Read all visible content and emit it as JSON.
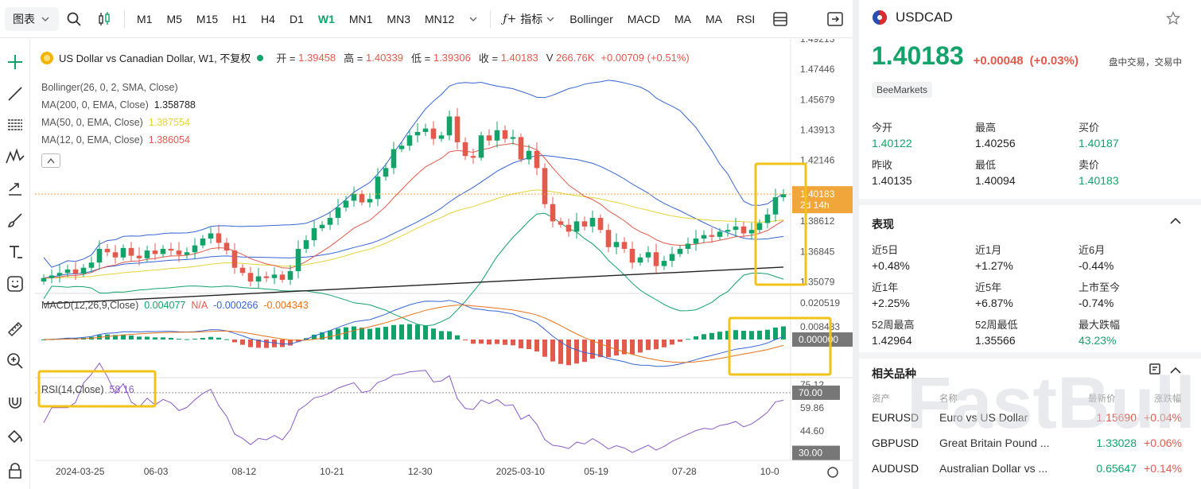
{
  "toolbar": {
    "chart_type": "图表",
    "intervals": [
      "M1",
      "M5",
      "M15",
      "H1",
      "H4",
      "D1",
      "W1",
      "MN1",
      "MN3",
      "MN12"
    ],
    "active_interval": "W1",
    "indicators_label": "指标",
    "indicator_buttons": [
      "Bollinger",
      "MACD",
      "MA",
      "MA",
      "RSI"
    ]
  },
  "pane": {
    "title": "US Dollar vs Canadian Dollar, W1, 不复权",
    "open_label": "开 =",
    "open": "1.39458",
    "high_label": "高 =",
    "high": "1.40339",
    "low_label": "低 =",
    "low": "1.39306",
    "close_label": "收 =",
    "close": "1.40183",
    "volume_label": "V",
    "volume": "266.76K",
    "change": "+0.00709 (+0.51%)",
    "indicators": [
      {
        "label": "Bollinger(26, 0, 2, SMA, Close)",
        "value": "",
        "color": "#3565d6"
      },
      {
        "label": "MA(200, 0, EMA, Close)",
        "value": "1.358788",
        "color": "#222222"
      },
      {
        "label": "MA(50, 0, EMA, Close)",
        "value": "1.387554",
        "color": "#e8d336"
      },
      {
        "label": "MA(12, 0, EMA, Close)",
        "value": "1.386054",
        "color": "#e25a4c"
      }
    ],
    "price_ticks": [
      "1.49213",
      "1.47446",
      "1.45679",
      "1.43913",
      "1.42146",
      "1.40183",
      "1.38612",
      "1.36845",
      "1.35079"
    ],
    "last_price_tag": "1.40183",
    "countdown_tag": "2d 14h",
    "macd_legend": {
      "label": "MACD(12,26,9,Close)",
      "v1": "0.004077",
      "v2": "N/A",
      "v3": "-0.000266",
      "v4": "-0.004343"
    },
    "macd_ticks": [
      "0.020519",
      "0.008433",
      "0.000000"
    ],
    "rsi_legend": {
      "label": "RSI(14,Close)",
      "value": "58.16"
    },
    "rsi_ticks": [
      "75.12",
      "70.00",
      "59.86",
      "44.60",
      "30.00"
    ],
    "date_ticks": [
      "2024-03-25",
      "06-03",
      "08-12",
      "10-21",
      "12-30",
      "2025-03-10",
      "05-19",
      "07-28",
      "10-0"
    ]
  },
  "chart_data": {
    "type": "candlestick",
    "symbol": "USDCAD",
    "interval": "W1",
    "price_axis": [
      1.345,
      1.4921
    ],
    "closes": [
      1.353,
      1.3545,
      1.356,
      1.358,
      1.3555,
      1.359,
      1.362,
      1.37,
      1.368,
      1.365,
      1.3705,
      1.366,
      1.3645,
      1.369,
      1.367,
      1.37,
      1.369,
      1.3665,
      1.368,
      1.372,
      1.376,
      1.379,
      1.3735,
      1.369,
      1.359,
      1.356,
      1.351,
      1.354,
      1.353,
      1.355,
      1.352,
      1.357,
      1.37,
      1.375,
      1.382,
      1.384,
      1.388,
      1.394,
      1.398,
      1.402,
      1.397,
      1.399,
      1.412,
      1.417,
      1.428,
      1.43,
      1.436,
      1.438,
      1.44,
      1.434,
      1.436,
      1.447,
      1.432,
      1.424,
      1.423,
      1.436,
      1.433,
      1.439,
      1.434,
      1.435,
      1.422,
      1.427,
      1.417,
      1.396,
      1.386,
      1.384,
      1.38,
      1.386,
      1.383,
      1.388,
      1.381,
      1.371,
      1.374,
      1.37,
      1.362,
      1.365,
      1.368,
      1.36,
      1.363,
      1.367,
      1.37,
      1.373,
      1.376,
      1.378,
      1.377,
      1.38,
      1.381,
      1.383,
      1.379,
      1.381,
      1.385,
      1.39,
      1.4,
      1.4018
    ],
    "rsi_levels": [
      70,
      30
    ],
    "macd_zero": 0
  },
  "info": {
    "symbol": "USDCAD",
    "last_price": "1.40183",
    "change_abs": "+0.00048",
    "change_pct": "(+0.03%)",
    "trading_status": "盘中交易，交易中",
    "source": "BeeMarkets",
    "stats": [
      {
        "label": "今开",
        "value": "1.40122",
        "up": true
      },
      {
        "label": "最高",
        "value": "1.40256",
        "up": false
      },
      {
        "label": "买价",
        "value": "1.40187",
        "up": true
      },
      {
        "label": "昨收",
        "value": "1.40135",
        "up": false
      },
      {
        "label": "最低",
        "value": "1.40094",
        "up": false
      },
      {
        "label": "卖价",
        "value": "1.40183",
        "up": true
      }
    ],
    "performance_title": "表现",
    "performance": [
      {
        "label": "近5日",
        "value": "+0.48%",
        "up": false
      },
      {
        "label": "近1月",
        "value": "+1.27%",
        "up": false
      },
      {
        "label": "近6月",
        "value": "-0.44%",
        "up": false
      },
      {
        "label": "近1年",
        "value": "+2.25%",
        "up": false
      },
      {
        "label": "近5年",
        "value": "+6.87%",
        "up": false
      },
      {
        "label": "上市至今",
        "value": "-0.74%",
        "up": false
      },
      {
        "label": "52周最高",
        "value": "1.42964",
        "up": false
      },
      {
        "label": "52周最低",
        "value": "1.35566",
        "up": false
      },
      {
        "label": "最大跌幅",
        "value": "43.23%",
        "up": true
      }
    ],
    "related_title": "相关品种",
    "related_headers": [
      "资产",
      "名称",
      "最新价",
      "涨跌幅"
    ],
    "related": [
      {
        "symbol": "EURUSD",
        "name": "Euro vs US Dollar",
        "price": "1.15690",
        "change": "+0.04%",
        "price_color": "#e25a4c"
      },
      {
        "symbol": "GBPUSD",
        "name": "Great Britain Pound ...",
        "price": "1.33028",
        "change": "+0.06%",
        "price_color": "#12a36b"
      },
      {
        "symbol": "AUDUSD",
        "name": "Australian Dollar vs ...",
        "price": "0.65647",
        "change": "+0.14%",
        "price_color": "#12a36b"
      }
    ],
    "watermark": "FastBull"
  },
  "colors": {
    "up": "#12a36b",
    "down": "#e25a4c",
    "highlight": "#f2c218"
  }
}
